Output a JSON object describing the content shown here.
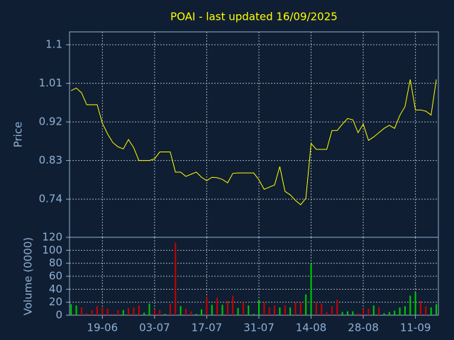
{
  "chart_data": [
    {
      "type": "line",
      "title": "POAI - last updated 16/09/2025",
      "ylabel": "Price",
      "color": "#ffff00",
      "grid": true,
      "x": [
        0,
        1,
        2,
        3,
        4,
        5,
        6,
        7,
        8,
        9,
        10,
        11,
        12,
        13,
        14,
        15,
        16,
        17,
        18,
        19,
        20,
        21,
        22,
        23,
        24,
        25,
        26,
        27,
        28,
        29,
        30,
        31,
        32,
        33,
        34,
        35,
        36,
        37,
        38,
        39,
        40,
        41,
        42,
        43,
        44,
        45,
        46,
        47,
        48,
        49,
        50,
        51,
        52,
        53,
        54,
        55,
        56,
        57,
        58,
        59,
        60,
        61,
        62,
        63,
        64,
        65,
        66,
        67,
        68,
        69,
        70
      ],
      "values": [
        0.993,
        0.999,
        0.988,
        0.96,
        0.96,
        0.96,
        0.917,
        0.892,
        0.872,
        0.862,
        0.857,
        0.879,
        0.86,
        0.83,
        0.83,
        0.83,
        0.834,
        0.85,
        0.85,
        0.85,
        0.803,
        0.803,
        0.793,
        0.798,
        0.803,
        0.791,
        0.783,
        0.791,
        0.79,
        0.786,
        0.778,
        0.8,
        0.801,
        0.801,
        0.801,
        0.801,
        0.785,
        0.763,
        0.768,
        0.773,
        0.816,
        0.758,
        0.75,
        0.737,
        0.727,
        0.742,
        0.87,
        0.856,
        0.856,
        0.856,
        0.9,
        0.9,
        0.915,
        0.928,
        0.925,
        0.895,
        0.915,
        0.877,
        0.885,
        0.895,
        0.905,
        0.912,
        0.905,
        0.935,
        0.956,
        1.019,
        0.948,
        0.948,
        0.945,
        0.936,
        1.019
      ],
      "xlim": [
        -0.3,
        70.4
      ],
      "xticks": [
        {
          "value": 6,
          "label": "19-06"
        },
        {
          "value": 16,
          "label": "03-07"
        },
        {
          "value": 26,
          "label": "17-07"
        },
        {
          "value": 36,
          "label": "31-07"
        },
        {
          "value": 46,
          "label": "14-08"
        },
        {
          "value": 56,
          "label": "28-08"
        },
        {
          "value": 66,
          "label": "11-09"
        }
      ],
      "ylim": [
        0.651,
        1.13
      ],
      "yticks": [
        0.74,
        0.83,
        0.92,
        1.01,
        1.1
      ]
    },
    {
      "type": "bar",
      "ylabel": "Volume (0000)",
      "grid": true,
      "values": [
        17,
        15,
        12,
        3,
        8,
        14,
        12,
        10,
        2,
        8,
        8,
        11,
        12,
        15,
        4,
        18,
        8,
        8,
        2,
        18,
        112,
        14,
        10,
        6,
        2,
        9,
        28,
        16,
        27,
        16,
        22,
        30,
        11,
        20,
        15,
        2,
        23,
        20,
        12,
        15,
        12,
        15,
        12,
        20,
        20,
        32,
        80,
        20,
        18,
        5,
        14,
        24,
        5,
        6,
        6,
        3,
        10,
        10,
        15,
        12,
        3,
        5,
        7,
        12,
        14,
        30,
        35,
        22,
        14,
        12,
        17
      ],
      "colors": [
        "#00cc00",
        "#00cc00",
        "#cc0000",
        "#cc0000",
        "#cc0000",
        "#cc0000",
        "#cc0000",
        "#cc0000",
        "#cc0000",
        "#cc0000",
        "#00cc00",
        "#cc0000",
        "#cc0000",
        "#cc0000",
        "#00cc00",
        "#00cc00",
        "#cc0000",
        "#cc0000",
        "#00cc00",
        "#cc0000",
        "#cc0000",
        "#00cc00",
        "#cc0000",
        "#cc0000",
        "#00cc00",
        "#00cc00",
        "#cc0000",
        "#00cc00",
        "#cc0000",
        "#00cc00",
        "#cc0000",
        "#cc0000",
        "#00cc00",
        "#cc0000",
        "#00cc00",
        "#00cc00",
        "#00cc00",
        "#cc0000",
        "#cc0000",
        "#cc0000",
        "#00cc00",
        "#cc0000",
        "#00cc00",
        "#cc0000",
        "#cc0000",
        "#00cc00",
        "#00cc00",
        "#cc0000",
        "#cc0000",
        "#cc0000",
        "#cc0000",
        "#cc0000",
        "#00cc00",
        "#00cc00",
        "#00cc00",
        "#cc0000",
        "#cc0000",
        "#cc0000",
        "#00cc00",
        "#cc0000",
        "#00cc00",
        "#00cc00",
        "#00cc00",
        "#00cc00",
        "#00cc00",
        "#00cc00",
        "#00cc00",
        "#cc0000",
        "#cc0000",
        "#00cc00",
        "#00cc00"
      ],
      "ylim": [
        0,
        120
      ],
      "yticks": [
        0,
        20,
        40,
        60,
        80,
        100,
        120
      ]
    }
  ]
}
